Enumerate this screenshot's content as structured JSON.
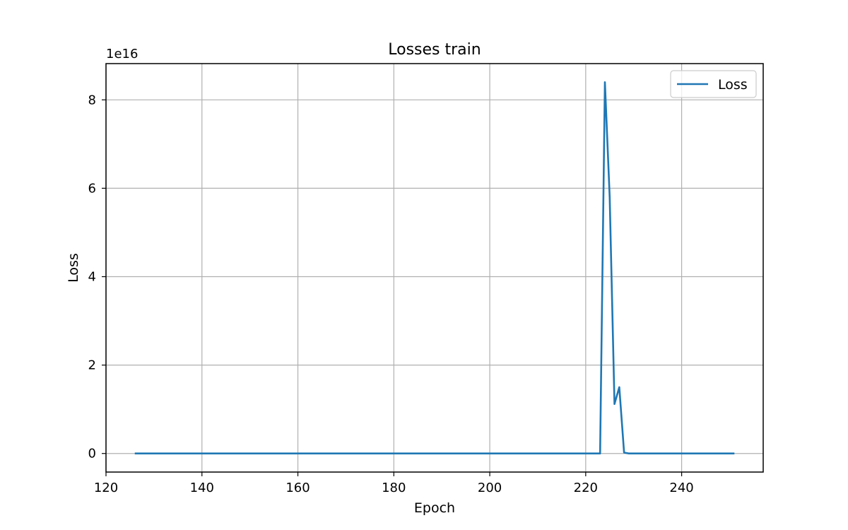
{
  "chart_data": {
    "type": "line",
    "title": "Losses train",
    "xlabel": "Epoch",
    "ylabel": "Loss",
    "y_multiplier_label": "1e16",
    "xlim": [
      120,
      257
    ],
    "ylim": [
      -0.42,
      8.82
    ],
    "xticks": [
      120,
      140,
      160,
      180,
      200,
      220,
      240
    ],
    "yticks": [
      0,
      2,
      4,
      6,
      8
    ],
    "grid": true,
    "legend_position": "top-right",
    "series": [
      {
        "name": "Loss",
        "color": "#1f77b4",
        "x": [
          126,
          223,
          224,
          225,
          226,
          227,
          228,
          229,
          251
        ],
        "y": [
          0,
          0,
          8.4,
          5.8,
          1.12,
          1.5,
          0.02,
          0,
          0
        ]
      }
    ]
  }
}
